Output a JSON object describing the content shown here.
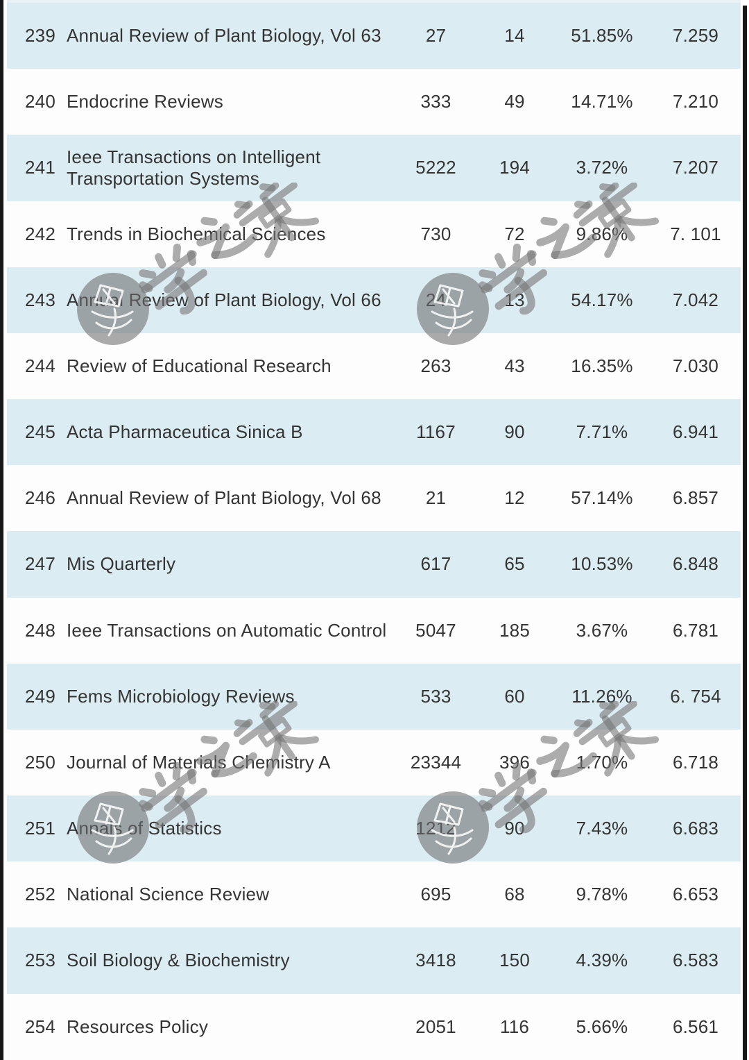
{
  "table": {
    "rows": [
      {
        "rank": "239",
        "journal": "Annual Review of Plant Biology, Vol 63",
        "count1": "27",
        "count2": "14",
        "percent": "51.85%",
        "score": "7.259"
      },
      {
        "rank": "240",
        "journal": "Endocrine Reviews",
        "count1": "333",
        "count2": "49",
        "percent": "14.71%",
        "score": "7.210"
      },
      {
        "rank": "241",
        "journal": "Ieee Transactions on Intelligent Transportation Systems",
        "count1": "5222",
        "count2": "194",
        "percent": "3.72%",
        "score": "7.207"
      },
      {
        "rank": "242",
        "journal": "Trends in Biochemical Sciences",
        "count1": "730",
        "count2": "72",
        "percent": "9.86%",
        "score": "7. 101"
      },
      {
        "rank": "243",
        "journal": "Annual Review of Plant Biology, Vol 66",
        "count1": "24",
        "count2": "13",
        "percent": "54.17%",
        "score": "7.042"
      },
      {
        "rank": "244",
        "journal": "Review of Educational Research",
        "count1": "263",
        "count2": "43",
        "percent": "16.35%",
        "score": "7.030"
      },
      {
        "rank": "245",
        "journal": "Acta Pharmaceutica Sinica B",
        "count1": "1167",
        "count2": "90",
        "percent": "7.71%",
        "score": "6.941"
      },
      {
        "rank": "246",
        "journal": "Annual Review of Plant Biology, Vol 68",
        "count1": "21",
        "count2": "12",
        "percent": "57.14%",
        "score": "6.857"
      },
      {
        "rank": "247",
        "journal": "Mis Quarterly",
        "count1": "617",
        "count2": "65",
        "percent": "10.53%",
        "score": "6.848"
      },
      {
        "rank": "248",
        "journal": "Ieee Transactions on Automatic Control",
        "count1": "5047",
        "count2": "185",
        "percent": "3.67%",
        "score": "6.781"
      },
      {
        "rank": "249",
        "journal": "Fems Microbiology Reviews",
        "count1": "533",
        "count2": "60",
        "percent": "11.26%",
        "score": "6. 754"
      },
      {
        "rank": "250",
        "journal": "Journal of Materials Chemistry A",
        "count1": "23344",
        "count2": "396",
        "percent": "1.70%",
        "score": "6.718"
      },
      {
        "rank": "251",
        "journal": "Annals of Statistics",
        "count1": "1212",
        "count2": "90",
        "percent": "7.43%",
        "score": "6.683"
      },
      {
        "rank": "252",
        "journal": "National Science Review",
        "count1": "695",
        "count2": "68",
        "percent": "9.78%",
        "score": "6.653"
      },
      {
        "rank": "253",
        "journal": "Soil Biology & Biochemistry",
        "count1": "3418",
        "count2": "150",
        "percent": "4.39%",
        "score": "6.583"
      },
      {
        "rank": "254",
        "journal": "Resources Policy",
        "count1": "2051",
        "count2": "116",
        "percent": "5.66%",
        "score": "6.561"
      }
    ]
  },
  "watermark": {
    "text": "学之策",
    "logo": "circular-seal-logo"
  },
  "colors": {
    "row_blue": "#dbecf2",
    "row_white": "#fdfdfd",
    "top_strip": "#e9f3f6",
    "text": "#343434",
    "edge_dark": "#171717",
    "watermark_gray": "#9b9b9b"
  }
}
